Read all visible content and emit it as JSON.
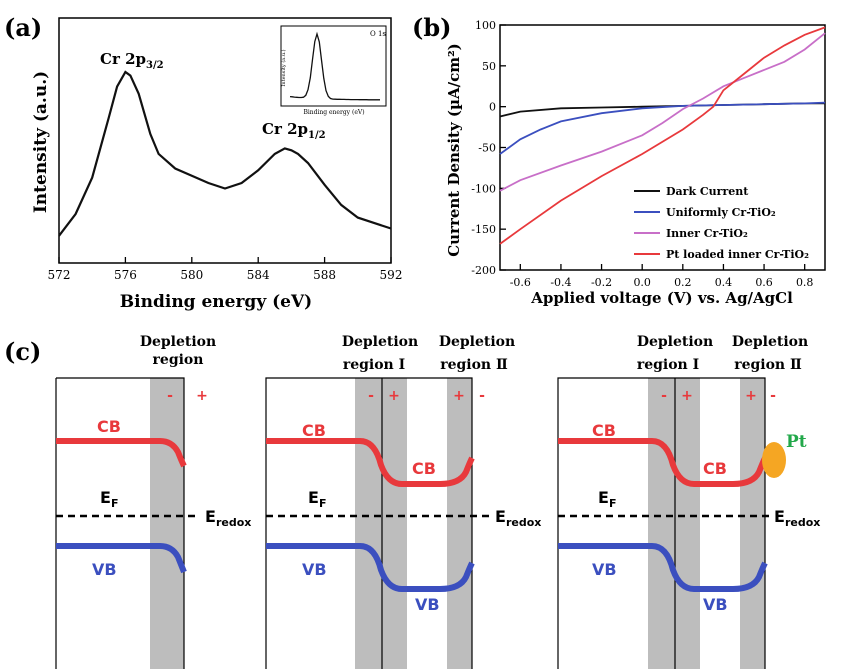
{
  "panels": {
    "a": {
      "label": "(a)",
      "xlabel": "Binding energy (eV)",
      "ylabel": "Intensity (a.u.)",
      "xticks": [
        "572",
        "576",
        "580",
        "584",
        "588",
        "592"
      ],
      "peak1": {
        "main": "Cr 2p",
        "sub": "3/2"
      },
      "peak2": {
        "main": "Cr 2p",
        "sub": "1/2"
      },
      "inset": {
        "title": "O 1s",
        "xlabel": "Binding energy (eV)",
        "ylabel": "Intensity (a.u.)"
      }
    },
    "b": {
      "label": "(b)",
      "xlabel": "Applied voltage (V) vs. Ag/AgCl",
      "ylabel": "Current Density (µA/cm²)",
      "xticks": [
        "-0.6",
        "-0.4",
        "-0.2",
        "0.0",
        "0.2",
        "0.4",
        "0.6",
        "0.8"
      ],
      "yticks": [
        "100",
        "50",
        "0",
        "-50",
        "-100",
        "-150",
        "-200"
      ],
      "legend": [
        {
          "name": "Dark Current",
          "color": "#111111"
        },
        {
          "name": "Uniformly Cr-TiO₂",
          "color": "#3b4fbf"
        },
        {
          "name": "Inner Cr-TiO₂",
          "color": "#c86fc8"
        },
        {
          "name": "Pt loaded inner Cr-TiO₂",
          "color": "#e8393c"
        }
      ]
    },
    "c": {
      "label": "(c)",
      "depletion_region": "Depletion region",
      "depletion_line1": "Depletion",
      "region_I": "region Ⅰ",
      "region_II": "region Ⅱ",
      "cb": "CB",
      "vb": "VB",
      "ef": "E",
      "ef_sub": "F",
      "eredox": "E",
      "eredox_sub": "redox",
      "pt": "Pt",
      "minus": "-",
      "plus": "+",
      "colors": {
        "cb": "#e8393c",
        "vb": "#3b4fbf",
        "depletion": "#bdbdbd",
        "pt": "#f5a623",
        "pt_text": "#22a84a"
      }
    }
  },
  "chart_data": [
    {
      "type": "line",
      "title": "",
      "xlabel": "Binding energy (eV)",
      "ylabel": "Intensity (a.u.)",
      "xlim": [
        572,
        592
      ],
      "series": [
        {
          "x": [
            572,
            573,
            574,
            575,
            575.5,
            576,
            576.3,
            576.8,
            577.5,
            578,
            579,
            580,
            581,
            582,
            583,
            584,
            585,
            585.6,
            586,
            586.4,
            587,
            588,
            589,
            590,
            591,
            592
          ],
          "y": [
            0.1,
            0.22,
            0.42,
            0.75,
            0.92,
            1.0,
            0.98,
            0.88,
            0.66,
            0.55,
            0.47,
            0.43,
            0.39,
            0.36,
            0.39,
            0.46,
            0.55,
            0.58,
            0.57,
            0.55,
            0.5,
            0.38,
            0.27,
            0.2,
            0.17,
            0.14
          ]
        }
      ],
      "annotations": [
        "Cr 2p3/2",
        "Cr 2p1/2"
      ]
    },
    {
      "type": "line",
      "title": "",
      "xlabel": "Applied voltage (V) vs. Ag/AgCl",
      "ylabel": "Current Density (µA/cm²)",
      "xlim": [
        -0.7,
        0.9
      ],
      "ylim": [
        -200,
        100
      ],
      "series": [
        {
          "name": "Dark Current",
          "x": [
            -0.7,
            -0.6,
            -0.4,
            -0.2,
            0.0,
            0.2,
            0.4,
            0.6,
            0.8,
            0.9
          ],
          "y": [
            -12,
            -6,
            -2,
            -1,
            0,
            1,
            2,
            3,
            4,
            4
          ]
        },
        {
          "name": "Uniformly Cr-TiO₂",
          "x": [
            -0.7,
            -0.6,
            -0.5,
            -0.4,
            -0.2,
            0.0,
            0.2,
            0.4,
            0.6,
            0.8,
            0.9
          ],
          "y": [
            -58,
            -40,
            -28,
            -18,
            -8,
            -2,
            1,
            2,
            3,
            4,
            5
          ]
        },
        {
          "name": "Inner Cr-TiO₂",
          "x": [
            -0.7,
            -0.6,
            -0.4,
            -0.2,
            0.0,
            0.1,
            0.2,
            0.3,
            0.4,
            0.5,
            0.6,
            0.7,
            0.8,
            0.9
          ],
          "y": [
            -103,
            -90,
            -72,
            -55,
            -35,
            -20,
            -3,
            10,
            25,
            35,
            45,
            55,
            70,
            90
          ]
        },
        {
          "name": "Pt loaded inner Cr-TiO₂",
          "x": [
            -0.7,
            -0.6,
            -0.4,
            -0.2,
            0.0,
            0.2,
            0.3,
            0.35,
            0.4,
            0.5,
            0.6,
            0.7,
            0.8,
            0.9
          ],
          "y": [
            -168,
            -150,
            -115,
            -85,
            -58,
            -28,
            -10,
            0,
            20,
            40,
            60,
            75,
            88,
            97
          ]
        }
      ],
      "legend_position": "bottom-right"
    }
  ]
}
